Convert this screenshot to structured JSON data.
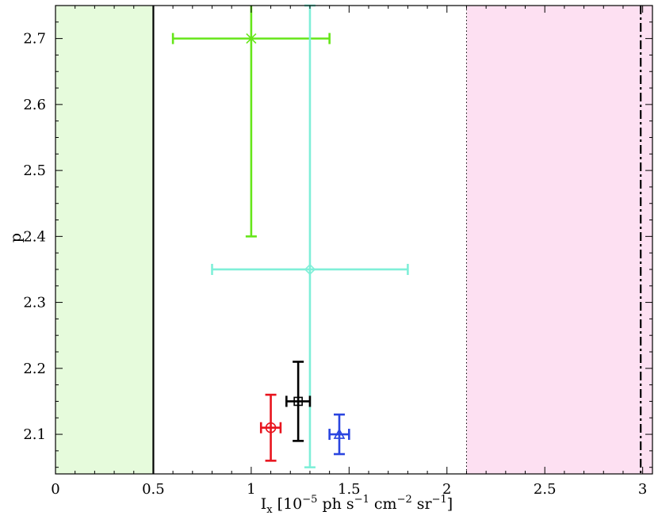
{
  "chart_data": {
    "type": "scatter",
    "title": "",
    "xlabel_parts": {
      "base": "I",
      "sub": "x",
      "open": " [10",
      "exp1": "−5",
      "mid1": " ph s",
      "exp2": "−1",
      "mid2": " cm",
      "exp3": "−2",
      "mid3": " sr",
      "exp4": "−1",
      "close": "]"
    },
    "ylabel": "p",
    "xlim": [
      0,
      3.05
    ],
    "ylim": [
      2.04,
      2.75
    ],
    "x_ticks": [
      0,
      0.5,
      1,
      1.5,
      2,
      2.5,
      3
    ],
    "x_tick_labels": [
      "0",
      "0.5",
      "1",
      "1.5",
      "2",
      "2.5",
      "3"
    ],
    "y_ticks": [
      2.1,
      2.2,
      2.3,
      2.4,
      2.5,
      2.6,
      2.7
    ],
    "y_tick_labels": [
      "2.1",
      "2.2",
      "2.3",
      "2.4",
      "2.5",
      "2.6",
      "2.7"
    ],
    "grid": false,
    "legend": "none",
    "shaded_regions": [
      {
        "x0": 0,
        "x1": 0.5,
        "color": "#e6fbdc"
      },
      {
        "x0": 2.1,
        "x1": 3.05,
        "color": "#fde0f2"
      }
    ],
    "vertical_lines": [
      {
        "x": 0.5,
        "style": "solid",
        "color": "#000000"
      },
      {
        "x": 2.1,
        "style": "dotted",
        "color": "#000000"
      },
      {
        "x": 2.99,
        "style": "dashdot",
        "color": "#000000"
      }
    ],
    "points": [
      {
        "x": 1.0,
        "y": 2.7,
        "xerr": [
          0.4,
          0.4
        ],
        "yerr": [
          0.3,
          0.1
        ],
        "marker": "asterisk",
        "color": "#66e61a"
      },
      {
        "x": 1.3,
        "y": 2.35,
        "xerr": [
          0.5,
          0.5
        ],
        "yerr": [
          0.3,
          0.4
        ],
        "marker": "diamond",
        "color": "#7fefd8"
      },
      {
        "x": 1.24,
        "y": 2.15,
        "xerr": [
          0.06,
          0.06
        ],
        "yerr": [
          0.06,
          0.06
        ],
        "marker": "square",
        "color": "#000000"
      },
      {
        "x": 1.1,
        "y": 2.11,
        "xerr": [
          0.05,
          0.05
        ],
        "yerr": [
          0.05,
          0.05
        ],
        "marker": "circle",
        "color": "#e8141e"
      },
      {
        "x": 1.45,
        "y": 2.1,
        "xerr": [
          0.05,
          0.05
        ],
        "yerr": [
          0.03,
          0.03
        ],
        "marker": "triangle",
        "color": "#2a45e0"
      }
    ]
  }
}
